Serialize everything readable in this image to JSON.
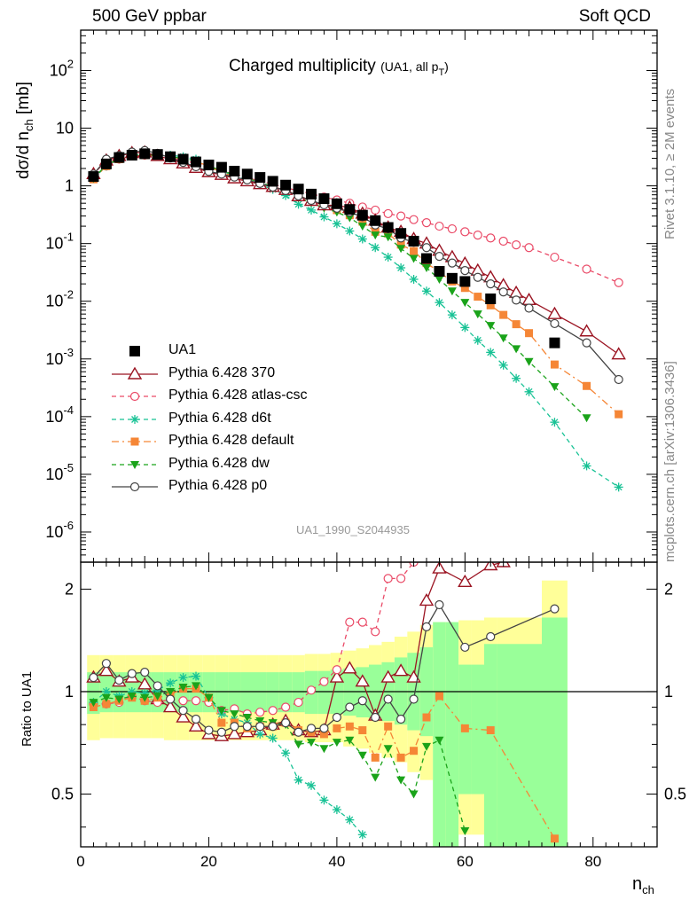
{
  "header": {
    "left": "500 GeV ppbar",
    "right": "Soft QCD"
  },
  "side_labels": {
    "top": "Rivet 3.1.10, ≥ 2M events",
    "bottom": "mcplots.cern.ch [arXiv:1306.3436]"
  },
  "panel_title": {
    "main": "Charged multiplicity",
    "note": "(UA1, all p",
    "note_sub": "T",
    "note_end": ")"
  },
  "analysis_id": "UA1_1990_S2044935",
  "colors": {
    "UA1": "#000000",
    "370": "#9b1422",
    "atlas-csc": "#ea4a67",
    "d6t": "#18c295",
    "default": "#f58636",
    "dw": "#1aa31a",
    "p0": "#444444",
    "band_outer": "#ffff99",
    "band_inner": "#99ff99"
  },
  "chart_data": {
    "type": "line",
    "main_panel": {
      "ylabel": "dσ/d n_ch [mb]",
      "yscale": "log",
      "ylim": [
        3e-07,
        500
      ],
      "yticks": [
        "10^-6",
        "10^-5",
        "10^-4",
        "10^-3",
        "10^-2",
        "10^-1",
        "1",
        "10",
        "10^2"
      ]
    },
    "ratio_panel": {
      "ylabel": "Ratio to UA1",
      "yscale": "log",
      "ylim": [
        0.35,
        2.4
      ],
      "yticks": [
        "0.5",
        "1",
        "2"
      ]
    },
    "xlabel": "n_ch",
    "xlim": [
      0,
      90
    ],
    "xticks": [
      "0",
      "20",
      "40",
      "60",
      "80"
    ],
    "series": [
      {
        "name": "UA1",
        "key": "UA1",
        "style": "square",
        "x": [
          2,
          4,
          6,
          8,
          10,
          12,
          14,
          16,
          18,
          20,
          22,
          24,
          26,
          28,
          30,
          32,
          34,
          36,
          38,
          40,
          42,
          44,
          46,
          48,
          50,
          52,
          54,
          56,
          58,
          60,
          64,
          74
        ],
        "values": [
          1.45,
          2.4,
          3.1,
          3.4,
          3.6,
          3.5,
          3.2,
          2.9,
          2.6,
          2.3,
          2.1,
          1.8,
          1.6,
          1.4,
          1.2,
          1.03,
          0.88,
          0.72,
          0.6,
          0.49,
          0.39,
          0.31,
          0.25,
          0.19,
          0.15,
          0.11,
          0.055,
          0.033,
          0.025,
          0.022,
          0.011,
          0.0019
        ]
      },
      {
        "name": "Pythia 6.428 370",
        "key": "370",
        "style": "triangle-open",
        "dash": "",
        "x": [
          2,
          4,
          6,
          8,
          10,
          12,
          14,
          16,
          18,
          20,
          22,
          24,
          26,
          28,
          30,
          32,
          34,
          36,
          38,
          40,
          42,
          44,
          46,
          48,
          50,
          52,
          54,
          56,
          58,
          60,
          62,
          64,
          66,
          68,
          70,
          74,
          79,
          84
        ],
        "values": [
          1.6,
          2.75,
          3.3,
          3.7,
          3.8,
          3.3,
          2.9,
          2.45,
          2.05,
          1.73,
          1.55,
          1.35,
          1.2,
          1.07,
          0.96,
          0.85,
          0.66,
          0.55,
          0.46,
          0.46,
          0.42,
          0.33,
          0.25,
          0.19,
          0.16,
          0.12,
          0.1,
          0.075,
          0.058,
          0.045,
          0.034,
          0.026,
          0.019,
          0.014,
          0.0105,
          0.006,
          0.003,
          0.0012
        ]
      },
      {
        "name": "Pythia 6.428 atlas-csc",
        "key": "atlas-csc",
        "style": "circle-open",
        "dash": "5,4",
        "x": [
          2,
          4,
          6,
          8,
          10,
          12,
          14,
          16,
          18,
          20,
          22,
          24,
          26,
          28,
          30,
          32,
          34,
          36,
          38,
          40,
          42,
          44,
          46,
          48,
          50,
          52,
          54,
          56,
          58,
          60,
          62,
          64,
          66,
          68,
          70,
          74,
          79,
          84
        ],
        "values": [
          1.35,
          2.2,
          2.9,
          3.3,
          3.4,
          3.25,
          3.05,
          2.75,
          2.45,
          2.15,
          1.85,
          1.6,
          1.38,
          1.22,
          1.06,
          0.93,
          0.82,
          0.73,
          0.64,
          0.57,
          0.5,
          0.43,
          0.38,
          0.33,
          0.3,
          0.26,
          0.23,
          0.2,
          0.18,
          0.16,
          0.14,
          0.125,
          0.11,
          0.095,
          0.085,
          0.058,
          0.036,
          0.021
        ]
      },
      {
        "name": "Pythia 6.428 d6t",
        "key": "d6t",
        "style": "star",
        "dash": "5,4",
        "x": [
          2,
          4,
          6,
          8,
          10,
          12,
          14,
          16,
          18,
          20,
          22,
          24,
          26,
          28,
          30,
          32,
          34,
          36,
          38,
          40,
          42,
          44,
          46,
          48,
          50,
          52,
          54,
          56,
          58,
          60,
          62,
          64,
          66,
          68,
          70,
          74,
          79,
          84
        ],
        "values": [
          1.35,
          2.2,
          3.0,
          3.4,
          3.55,
          3.55,
          3.4,
          3.2,
          2.9,
          2.2,
          1.8,
          1.5,
          1.3,
          1.05,
          0.87,
          0.68,
          0.48,
          0.38,
          0.29,
          0.22,
          0.165,
          0.12,
          0.085,
          0.058,
          0.038,
          0.024,
          0.015,
          0.0095,
          0.0058,
          0.0035,
          0.0021,
          0.0013,
          0.00078,
          0.00046,
          0.00027,
          8e-05,
          1.4e-05,
          6e-06
        ]
      },
      {
        "name": "Pythia 6.428 default",
        "key": "default",
        "style": "square-small",
        "dash": "8,4,2,4",
        "x": [
          2,
          4,
          6,
          8,
          10,
          12,
          14,
          16,
          18,
          20,
          22,
          24,
          26,
          28,
          30,
          32,
          34,
          36,
          38,
          40,
          42,
          44,
          46,
          48,
          50,
          52,
          54,
          56,
          58,
          60,
          62,
          64,
          66,
          68,
          70,
          74,
          79,
          84
        ],
        "values": [
          1.3,
          2.2,
          2.9,
          3.25,
          3.4,
          3.35,
          3.15,
          2.95,
          2.65,
          2.2,
          1.7,
          1.45,
          1.25,
          1.1,
          0.95,
          0.83,
          0.68,
          0.55,
          0.45,
          0.38,
          0.31,
          0.24,
          0.16,
          0.15,
          0.096,
          0.074,
          0.046,
          0.032,
          0.022,
          0.017,
          0.012,
          0.0085,
          0.0058,
          0.004,
          0.0028,
          0.0008,
          0.00034,
          0.00011
        ]
      },
      {
        "name": "Pythia 6.428 dw",
        "key": "dw",
        "style": "triangle-down",
        "dash": "5,4",
        "x": [
          2,
          4,
          6,
          8,
          10,
          12,
          14,
          16,
          18,
          20,
          22,
          24,
          26,
          28,
          30,
          32,
          34,
          36,
          38,
          40,
          42,
          44,
          46,
          48,
          50,
          52,
          54,
          56,
          58,
          60,
          62,
          64,
          66,
          68,
          70,
          74,
          79
        ],
        "values": [
          1.35,
          2.3,
          2.95,
          3.3,
          3.45,
          3.4,
          3.2,
          3.0,
          2.7,
          2.2,
          1.85,
          1.55,
          1.35,
          1.15,
          0.97,
          0.82,
          0.62,
          0.51,
          0.41,
          0.35,
          0.28,
          0.2,
          0.14,
          0.13,
          0.082,
          0.055,
          0.038,
          0.024,
          0.015,
          0.0095,
          0.006,
          0.0038,
          0.0023,
          0.0015,
          0.0009,
          0.00033,
          9.5e-05
        ]
      },
      {
        "name": "Pythia 6.428 p0",
        "key": "p0",
        "style": "circle-open",
        "dash": "",
        "x": [
          2,
          4,
          6,
          8,
          10,
          12,
          14,
          16,
          18,
          20,
          22,
          24,
          26,
          28,
          30,
          32,
          34,
          36,
          38,
          40,
          42,
          44,
          46,
          48,
          50,
          52,
          54,
          56,
          58,
          60,
          62,
          64,
          66,
          68,
          70,
          74,
          79,
          84
        ],
        "values": [
          1.6,
          2.9,
          3.35,
          3.85,
          4.1,
          3.65,
          3.05,
          2.55,
          2.15,
          1.78,
          1.6,
          1.42,
          1.27,
          1.1,
          0.95,
          0.83,
          0.67,
          0.56,
          0.47,
          0.41,
          0.35,
          0.29,
          0.21,
          0.18,
          0.125,
          0.105,
          0.085,
          0.06,
          0.046,
          0.034,
          0.026,
          0.02,
          0.0145,
          0.0105,
          0.0076,
          0.0041,
          0.0019,
          0.00044
        ]
      }
    ],
    "ratio_series": [
      {
        "key": "370",
        "x": [
          2,
          4,
          6,
          8,
          10,
          12,
          14,
          16,
          18,
          20,
          22,
          24,
          26,
          28,
          30,
          32,
          34,
          36,
          38,
          40,
          42,
          44,
          46,
          48,
          50,
          52,
          54,
          56,
          60,
          64,
          66
        ],
        "values": [
          1.1,
          1.15,
          1.07,
          1.1,
          1.05,
          0.95,
          0.9,
          0.84,
          0.79,
          0.75,
          0.74,
          0.75,
          0.76,
          0.77,
          0.8,
          0.82,
          0.77,
          0.76,
          0.77,
          1.1,
          1.17,
          1.07,
          0.85,
          1.1,
          1.15,
          1.1,
          1.85,
          2.3,
          2.1,
          2.35,
          2.4
        ]
      },
      {
        "key": "atlas-csc",
        "x": [
          2,
          4,
          6,
          8,
          10,
          12,
          14,
          16,
          18,
          20,
          22,
          24,
          26,
          28,
          30,
          32,
          34,
          36,
          38,
          40,
          42,
          44,
          46,
          48,
          50,
          52
        ],
        "values": [
          0.92,
          0.92,
          0.93,
          0.97,
          0.94,
          0.93,
          0.95,
          0.94,
          0.94,
          0.93,
          0.88,
          0.89,
          0.86,
          0.87,
          0.88,
          0.9,
          0.93,
          1.01,
          1.07,
          1.16,
          1.6,
          1.6,
          1.5,
          2.15,
          2.15,
          2.4
        ]
      },
      {
        "key": "d6t",
        "x": [
          2,
          4,
          6,
          8,
          10,
          12,
          14,
          16,
          18,
          20,
          22,
          24,
          26,
          28,
          30,
          32,
          34,
          36,
          38,
          40,
          42,
          44
        ],
        "values": [
          0.93,
          1.0,
          0.97,
          1.0,
          0.99,
          1.01,
          1.06,
          1.1,
          1.11,
          0.96,
          0.86,
          0.83,
          0.81,
          0.75,
          0.73,
          0.66,
          0.55,
          0.53,
          0.48,
          0.45,
          0.42,
          0.38
        ]
      },
      {
        "key": "default",
        "x": [
          2,
          4,
          6,
          8,
          10,
          12,
          14,
          16,
          18,
          20,
          22,
          24,
          26,
          28,
          30,
          32,
          34,
          36,
          38,
          40,
          42,
          44,
          46,
          48,
          50,
          52,
          54,
          56,
          60,
          64,
          74
        ],
        "values": [
          0.9,
          0.92,
          0.94,
          0.96,
          0.94,
          0.96,
          0.98,
          1.02,
          1.02,
          0.96,
          0.81,
          0.81,
          0.78,
          0.79,
          0.79,
          0.81,
          0.77,
          0.76,
          0.75,
          0.78,
          0.79,
          0.77,
          0.64,
          0.79,
          0.64,
          0.67,
          0.84,
          0.97,
          0.78,
          0.77,
          0.37
        ]
      },
      {
        "key": "dw",
        "x": [
          2,
          4,
          6,
          8,
          10,
          12,
          14,
          16,
          18,
          20,
          22,
          24,
          26,
          28,
          30,
          32,
          34,
          36,
          38,
          40,
          42,
          44,
          46,
          48,
          50,
          52,
          54,
          56,
          60
        ],
        "values": [
          0.93,
          0.96,
          0.95,
          0.97,
          0.96,
          0.97,
          1.0,
          1.03,
          1.04,
          0.96,
          0.88,
          0.86,
          0.84,
          0.82,
          0.81,
          0.8,
          0.7,
          0.71,
          0.68,
          0.71,
          0.72,
          0.65,
          0.56,
          0.68,
          0.55,
          0.5,
          0.69,
          0.72,
          0.39
        ]
      },
      {
        "key": "p0",
        "x": [
          2,
          4,
          6,
          8,
          10,
          12,
          14,
          16,
          18,
          20,
          22,
          24,
          26,
          28,
          30,
          32,
          34,
          36,
          38,
          40,
          42,
          44,
          46,
          48,
          50,
          52,
          54,
          56,
          60,
          64,
          74
        ],
        "values": [
          1.1,
          1.21,
          1.08,
          1.13,
          1.14,
          1.04,
          0.95,
          0.88,
          0.83,
          0.77,
          0.76,
          0.79,
          0.79,
          0.79,
          0.79,
          0.81,
          0.76,
          0.78,
          0.78,
          0.84,
          0.9,
          0.94,
          0.84,
          0.95,
          0.83,
          0.95,
          1.55,
          1.8,
          1.35,
          1.45,
          1.75
        ]
      }
    ],
    "uncertainty_bands": {
      "x_edges": [
        1,
        3,
        5,
        7,
        9,
        11,
        13,
        15,
        17,
        19,
        21,
        23,
        25,
        27,
        29,
        31,
        33,
        35,
        37,
        39,
        41,
        43,
        45,
        47,
        49,
        51,
        53,
        55,
        57,
        59,
        61,
        63,
        65,
        72,
        76
      ],
      "outer_lo": [
        0.72,
        0.73,
        0.73,
        0.73,
        0.73,
        0.73,
        0.72,
        0.72,
        0.72,
        0.72,
        0.72,
        0.72,
        0.72,
        0.72,
        0.72,
        0.72,
        0.72,
        0.71,
        0.71,
        0.71,
        0.69,
        0.68,
        0.66,
        0.64,
        0.62,
        0.58,
        0.55,
        0.35,
        0.35,
        0.38,
        0.38,
        0.35,
        0.35,
        0.35
      ],
      "outer_hi": [
        1.28,
        1.28,
        1.28,
        1.28,
        1.28,
        1.28,
        1.28,
        1.28,
        1.28,
        1.28,
        1.28,
        1.28,
        1.28,
        1.28,
        1.28,
        1.28,
        1.28,
        1.29,
        1.29,
        1.3,
        1.32,
        1.34,
        1.37,
        1.4,
        1.45,
        1.5,
        1.57,
        1.6,
        1.6,
        1.62,
        1.62,
        1.65,
        1.65,
        2.12
      ],
      "inner_lo": [
        0.86,
        0.87,
        0.87,
        0.87,
        0.87,
        0.87,
        0.87,
        0.87,
        0.87,
        0.87,
        0.87,
        0.87,
        0.87,
        0.87,
        0.87,
        0.87,
        0.87,
        0.86,
        0.86,
        0.86,
        0.85,
        0.84,
        0.83,
        0.82,
        0.8,
        0.77,
        0.74,
        0.35,
        0.35,
        0.5,
        0.5,
        0.35,
        0.35,
        0.35
      ],
      "inner_hi": [
        1.14,
        1.14,
        1.14,
        1.14,
        1.14,
        1.14,
        1.14,
        1.14,
        1.14,
        1.14,
        1.14,
        1.14,
        1.14,
        1.14,
        1.14,
        1.14,
        1.14,
        1.15,
        1.15,
        1.16,
        1.17,
        1.18,
        1.2,
        1.22,
        1.26,
        1.3,
        1.35,
        1.6,
        1.6,
        1.2,
        1.2,
        1.38,
        1.38,
        1.65
      ]
    }
  }
}
